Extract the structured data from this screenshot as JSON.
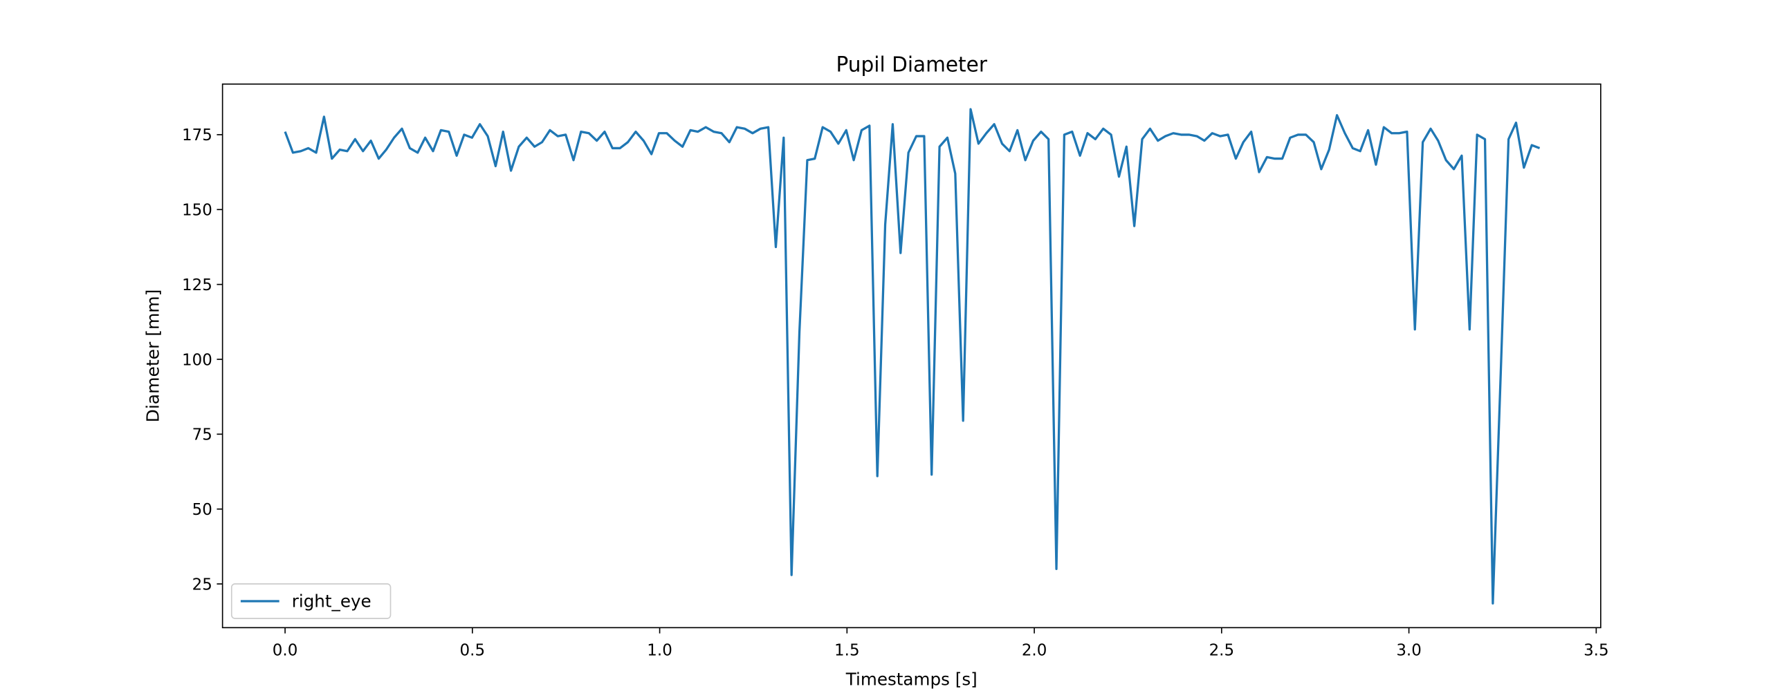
{
  "chart_data": {
    "type": "line",
    "title": "Pupil Diameter",
    "xlabel": "Timestamps [s]",
    "ylabel": "Diameter [mm]",
    "x": [
      0,
      0.021,
      0.042,
      0.062,
      0.083,
      0.104,
      0.125,
      0.146,
      0.166,
      0.187,
      0.208,
      0.229,
      0.25,
      0.27,
      0.291,
      0.312,
      0.333,
      0.354,
      0.374,
      0.395,
      0.416,
      0.437,
      0.458,
      0.478,
      0.499,
      0.52,
      0.541,
      0.562,
      0.582,
      0.603,
      0.624,
      0.645,
      0.666,
      0.686,
      0.707,
      0.728,
      0.749,
      0.77,
      0.79,
      0.811,
      0.832,
      0.853,
      0.874,
      0.894,
      0.915,
      0.936,
      0.957,
      0.978,
      0.998,
      1.019,
      1.04,
      1.061,
      1.082,
      1.102,
      1.123,
      1.144,
      1.165,
      1.186,
      1.206,
      1.227,
      1.248,
      1.269,
      1.29,
      1.31,
      1.331,
      1.352,
      1.373,
      1.394,
      1.414,
      1.435,
      1.456,
      1.477,
      1.498,
      1.518,
      1.539,
      1.56,
      1.581,
      1.602,
      1.622,
      1.643,
      1.664,
      1.685,
      1.706,
      1.726,
      1.747,
      1.768,
      1.789,
      1.81,
      1.83,
      1.851,
      1.872,
      1.893,
      1.914,
      1.934,
      1.955,
      1.976,
      1.997,
      2.018,
      2.038,
      2.059,
      2.08,
      2.101,
      2.122,
      2.142,
      2.163,
      2.184,
      2.205,
      2.226,
      2.246,
      2.267,
      2.288,
      2.309,
      2.33,
      2.35,
      2.371,
      2.392,
      2.413,
      2.434,
      2.454,
      2.475,
      2.496,
      2.517,
      2.538,
      2.558,
      2.579,
      2.6,
      2.621,
      2.642,
      2.662,
      2.683,
      2.704,
      2.725,
      2.746,
      2.766,
      2.787,
      2.808,
      2.829,
      2.85,
      2.87,
      2.891,
      2.912,
      2.933,
      2.954,
      2.974,
      2.995,
      3.016,
      3.037,
      3.058,
      3.078,
      3.099,
      3.12,
      3.141,
      3.162,
      3.182,
      3.203,
      3.224,
      3.245,
      3.266,
      3.286,
      3.307,
      3.328,
      3.349
    ],
    "series": [
      {
        "name": "right_eye",
        "color": "#1f77b4",
        "values": [
          176,
          169,
          169.5,
          170.5,
          169,
          181,
          167,
          170,
          169.5,
          173.5,
          169.5,
          173,
          167,
          170,
          174,
          177,
          170.5,
          169,
          174,
          169.5,
          176.5,
          176,
          168,
          175,
          174,
          178.5,
          174.5,
          164.5,
          176,
          163,
          171,
          174,
          171,
          172.5,
          176.5,
          174.5,
          175,
          166.5,
          176,
          175.5,
          173,
          176,
          170.5,
          170.5,
          172.5,
          176,
          173,
          168.5,
          175.5,
          175.5,
          173,
          171,
          176.5,
          176,
          177.5,
          176,
          175.5,
          172.5,
          177.5,
          177,
          175.5,
          177,
          177.5,
          137.5,
          174,
          28,
          109,
          166.5,
          167,
          177.5,
          176,
          172,
          176.5,
          166.5,
          176.5,
          178,
          61,
          145,
          178.5,
          135.5,
          169,
          174.5,
          174.5,
          61.5,
          171,
          174,
          162,
          79.5,
          183.5,
          172,
          175.5,
          178.5,
          172,
          169.5,
          176.5,
          166.5,
          173,
          176,
          173.5,
          30,
          175,
          176,
          168,
          175.5,
          173.5,
          177,
          175,
          161,
          171,
          144.5,
          173.5,
          177,
          173,
          174.5,
          175.5,
          175,
          175,
          174.5,
          173,
          175.5,
          174.5,
          175,
          167,
          172.5,
          176,
          162.5,
          167.5,
          167,
          167,
          174,
          175,
          175,
          172.5,
          163.5,
          170,
          181.5,
          175.5,
          170.5,
          169.5,
          176.5,
          165,
          177.5,
          175.5,
          175.5,
          176,
          110,
          172.5,
          177,
          173,
          166.5,
          163.5,
          168,
          110,
          175,
          173.5,
          18.5,
          95,
          173.5,
          179,
          164,
          171.5,
          170.5
        ]
      }
    ],
    "xlim": [
      -0.167,
      3.512
    ],
    "ylim": [
      10.4,
      191.9
    ],
    "xticks": [
      {
        "value": 0,
        "label": "0.0"
      },
      0.5,
      {
        "value": 1,
        "label": "1.0"
      },
      1.5,
      {
        "value": 2,
        "label": "2.0"
      },
      2.5,
      {
        "value": 3,
        "label": "3.0"
      },
      3.5
    ],
    "yticks": [
      25,
      50,
      75,
      100,
      125,
      150,
      175
    ],
    "legend": "lower left",
    "grid": false
  }
}
